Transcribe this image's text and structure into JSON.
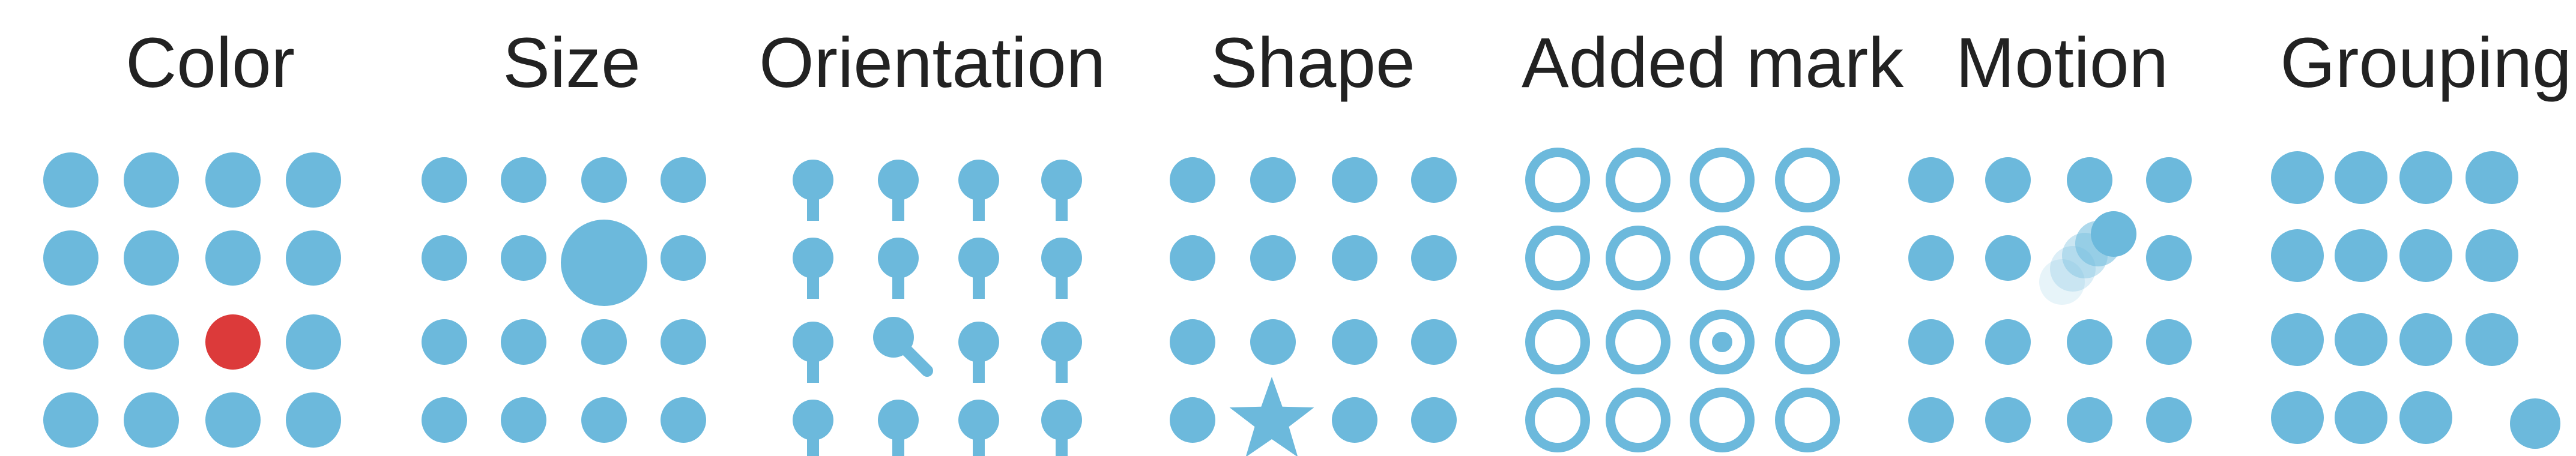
{
  "colors": {
    "base": "#6cb9dc",
    "highlight": "#dc3a3a",
    "text": "#222222",
    "background": "#ffffff"
  },
  "panels": [
    {
      "title": "Color",
      "variant": "color"
    },
    {
      "title": "Size",
      "variant": "size"
    },
    {
      "title": "Orientation",
      "variant": "orientation"
    },
    {
      "title": "Shape",
      "variant": "shape"
    },
    {
      "title": "Added mark",
      "variant": "added-mark"
    },
    {
      "title": "Motion",
      "variant": "motion"
    },
    {
      "title": "Grouping",
      "variant": "grouping"
    }
  ],
  "grid": {
    "rows": 4,
    "cols": 4
  },
  "highlight_cells": {
    "color": [
      2,
      2
    ],
    "size": [
      1,
      2
    ],
    "orientation": [
      2,
      1
    ],
    "shape": [
      3,
      1
    ],
    "added-mark": [
      2,
      2
    ],
    "motion": [
      1,
      2
    ],
    "grouping": [
      3,
      3
    ]
  }
}
